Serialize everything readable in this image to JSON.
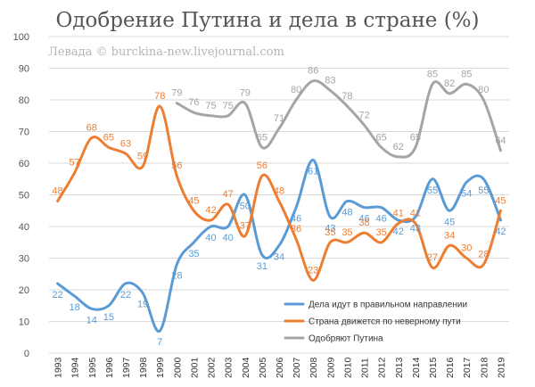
{
  "chart_data": {
    "type": "line",
    "title": "Одобрение Путина и дела в стране (%)",
    "watermark": "Левада © burckina-new.livejournal.com",
    "xlabel": "",
    "ylabel": "",
    "ylim": [
      0,
      100
    ],
    "yticks": [
      "0",
      "10",
      "20",
      "30",
      "40",
      "50",
      "60",
      "70",
      "80",
      "90",
      "100"
    ],
    "categories": [
      "1993",
      "1994",
      "1995",
      "1996",
      "1997",
      "1998",
      "1999",
      "2000",
      "2001",
      "2002",
      "2003",
      "2004",
      "2005",
      "2006",
      "2007",
      "2008",
      "2009",
      "2010",
      "2011",
      "2012",
      "2013",
      "2014",
      "2015",
      "2016",
      "2017",
      "2018",
      "2019"
    ],
    "grid": true,
    "legend_position": "bottom-right",
    "series": [
      {
        "name": "Дела идут в правильном направлении",
        "color": "#5b9bd5",
        "values": [
          22,
          18,
          14,
          15,
          22,
          19,
          7,
          28,
          35,
          40,
          40,
          50,
          31,
          34,
          46,
          61,
          43,
          48,
          46,
          46,
          42,
          43,
          55,
          45,
          54,
          55,
          42
        ],
        "labels": [
          "22",
          "18",
          "14",
          "15",
          "22",
          "19",
          "7",
          "28",
          "35",
          "40",
          "40",
          "50",
          "31",
          "34",
          "46",
          "61",
          "43",
          "48",
          "46",
          "46",
          "42",
          "43",
          "55",
          "45",
          "54",
          "55",
          "42"
        ]
      },
      {
        "name": "Страна движется по неверному пути",
        "color": "#ed7d31",
        "values": [
          48,
          57,
          68,
          65,
          63,
          59,
          78,
          56,
          45,
          42,
          47,
          37,
          56,
          48,
          36,
          23,
          35,
          35,
          38,
          35,
          41,
          41,
          27,
          34,
          30,
          28,
          45
        ],
        "labels": [
          "48",
          "57",
          "68",
          "65",
          "63",
          "59",
          "78",
          "56",
          "45",
          "42",
          "47",
          "37",
          "56",
          "48",
          "36",
          "23",
          "35",
          "35",
          "38",
          "35",
          "41",
          "41",
          "27",
          "34",
          "30",
          "28",
          "45"
        ]
      },
      {
        "name": "Одобряют Путина",
        "color": "#a5a5a5",
        "values": [
          null,
          null,
          null,
          null,
          null,
          null,
          null,
          79,
          76,
          75,
          75,
          79,
          65,
          71,
          80,
          86,
          83,
          78,
          72,
          65,
          62,
          65,
          85,
          82,
          85,
          80,
          64
        ],
        "labels": [
          "",
          "",
          "",
          "",
          "",
          "",
          "",
          "79",
          "76",
          "75",
          "75",
          "79",
          "65",
          "71",
          "80",
          "86",
          "83",
          "78",
          "72",
          "65",
          "62",
          "65",
          "85",
          "82",
          "85",
          "80",
          "64"
        ]
      }
    ]
  }
}
